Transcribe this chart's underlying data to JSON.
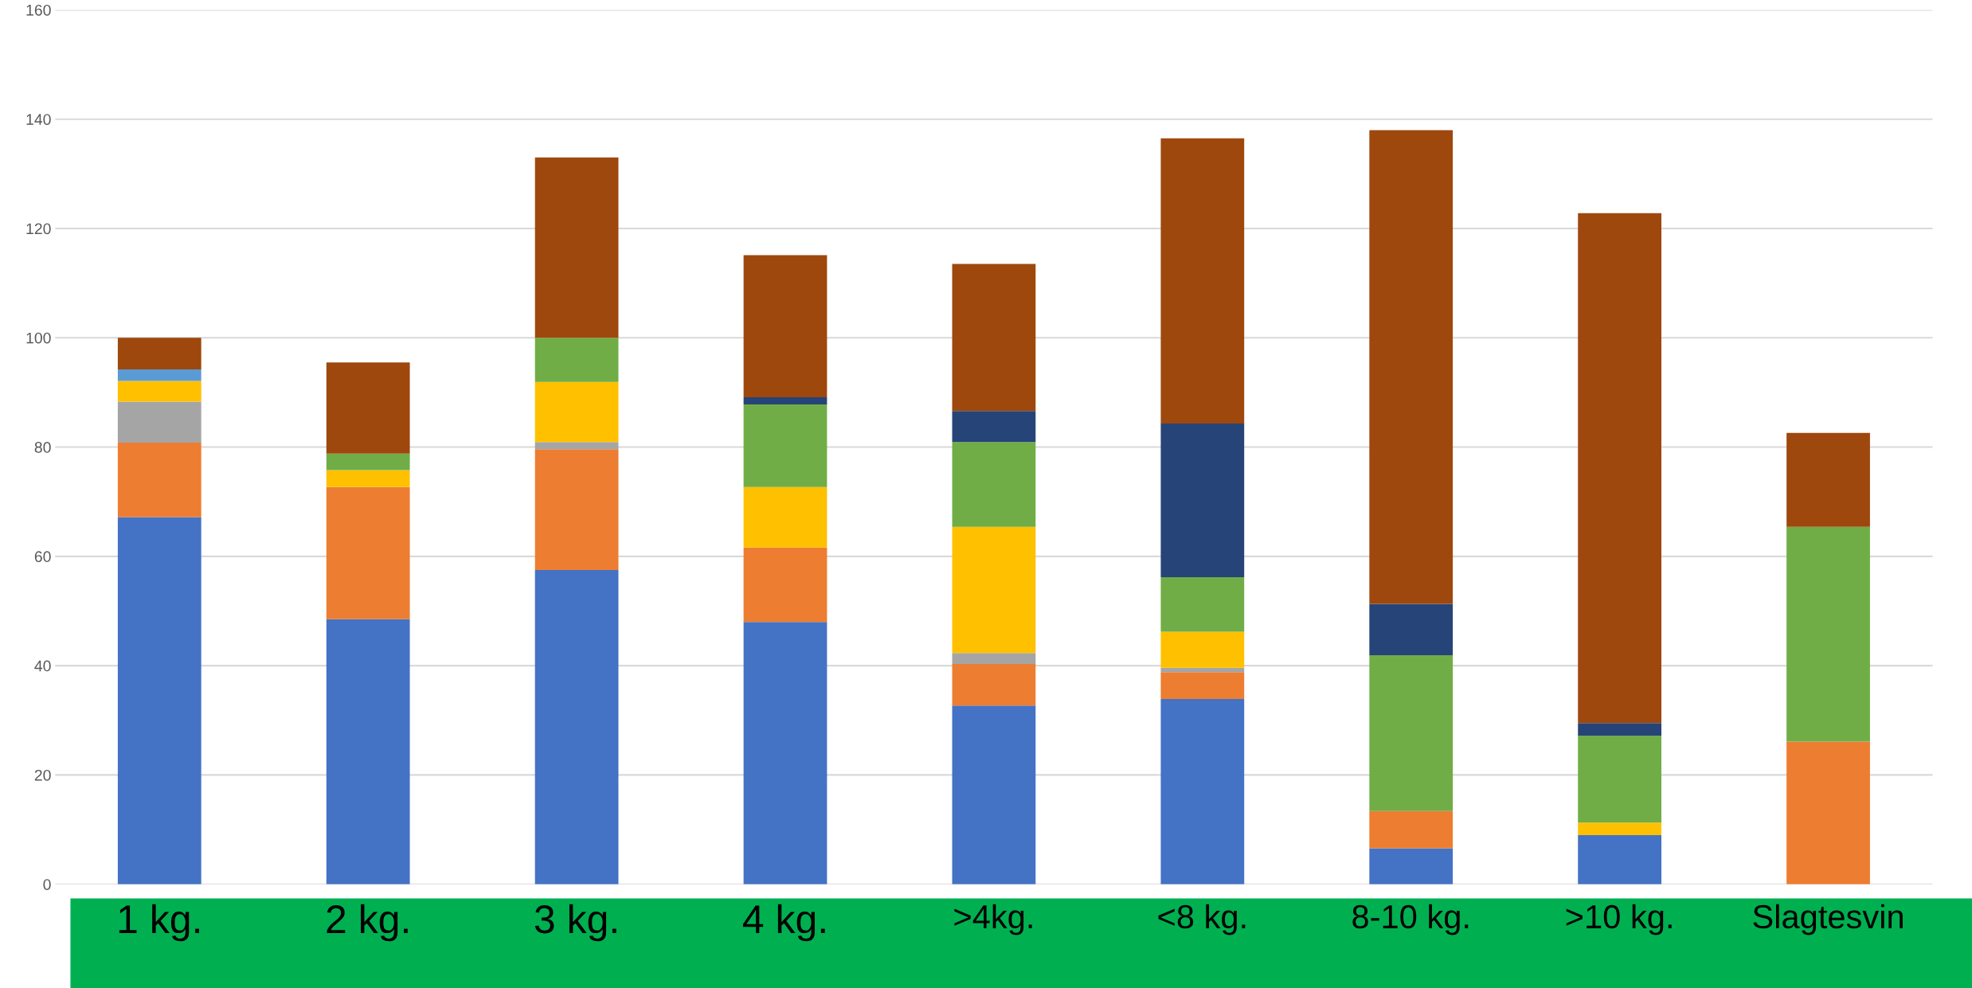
{
  "chart_data": {
    "type": "bar",
    "stacked": true,
    "categories": [
      "1 kg.",
      "2 kg.",
      "3 kg.",
      "4 kg.",
      ">4kg.",
      "<8 kg.",
      "8-10 kg.",
      ">10 kg.",
      "Slagtesvin"
    ],
    "series": [
      {
        "color": "#4472c4",
        "values": [
          67.2,
          48.5,
          57.5,
          48.0,
          32.7,
          33.9,
          6.6,
          9.0,
          null
        ]
      },
      {
        "color": "#ed7d31",
        "values": [
          13.6,
          24.2,
          22.1,
          13.6,
          7.6,
          4.9,
          6.8,
          null,
          26.1
        ]
      },
      {
        "color": "#a5a5a5",
        "values": [
          7.5,
          null,
          1.3,
          null,
          2.0,
          0.8,
          null,
          null,
          null
        ]
      },
      {
        "color": "#ffc000",
        "values": [
          3.8,
          3.1,
          11.0,
          11.1,
          23.1,
          6.6,
          null,
          2.3,
          null
        ]
      },
      {
        "color": "#5b9bd5",
        "values": [
          2.1,
          null,
          null,
          null,
          null,
          null,
          null,
          null,
          null
        ]
      },
      {
        "color": "#70ad47",
        "values": [
          null,
          3.0,
          8.1,
          15.1,
          15.5,
          10.0,
          28.5,
          15.9,
          39.3
        ]
      },
      {
        "color": "#264478",
        "values": [
          null,
          null,
          null,
          1.3,
          5.7,
          28.1,
          9.4,
          2.3,
          null
        ]
      },
      {
        "color": "#9e480e",
        "values": [
          5.8,
          16.7,
          33.0,
          26.0,
          26.9,
          52.2,
          86.7,
          93.3,
          17.2
        ]
      }
    ],
    "ylim": [
      0,
      160
    ],
    "yticks": [
      0,
      20,
      40,
      60,
      80,
      100,
      120,
      140,
      160
    ],
    "grid": "y",
    "legend": false
  }
}
